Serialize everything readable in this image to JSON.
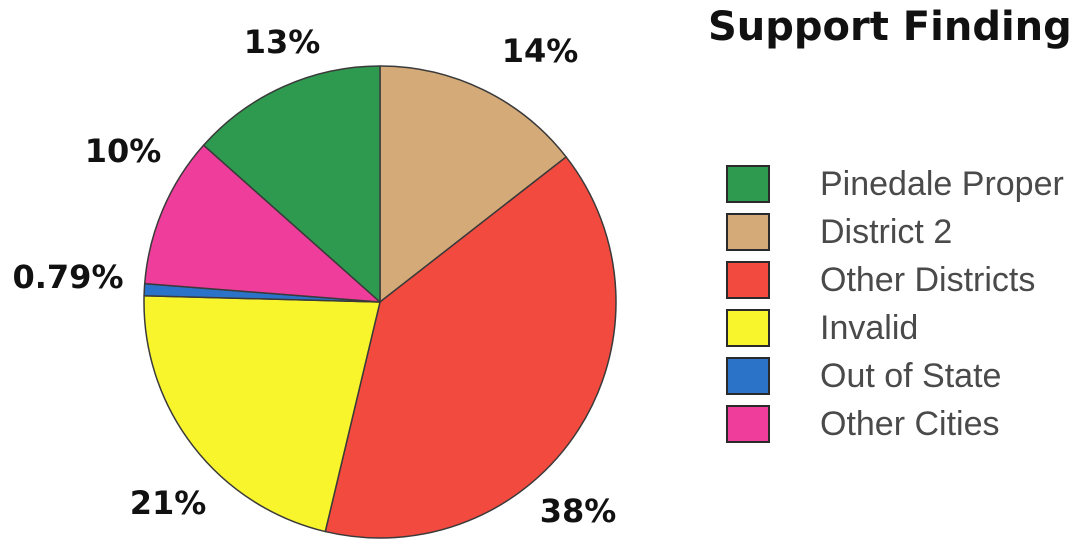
{
  "chart_data": {
    "type": "pie",
    "title": "Support Finding",
    "legend_position": "right",
    "slices": [
      {
        "name": "Pinedale Proper",
        "value": 13,
        "label": "13%",
        "color": "#2e9a4f"
      },
      {
        "name": "District 2",
        "value": 14,
        "label": "14%",
        "color": "#d4aa78"
      },
      {
        "name": "Other Districts",
        "value": 38,
        "label": "38%",
        "color": "#f24a3e"
      },
      {
        "name": "Invalid",
        "value": 21,
        "label": "21%",
        "color": "#f8f52c"
      },
      {
        "name": "Out of State",
        "value": 0.79,
        "label": "0.79%",
        "color": "#2b73c8"
      },
      {
        "name": "Other Cities",
        "value": 10,
        "label": "10%",
        "color": "#ee3d9a"
      }
    ]
  }
}
